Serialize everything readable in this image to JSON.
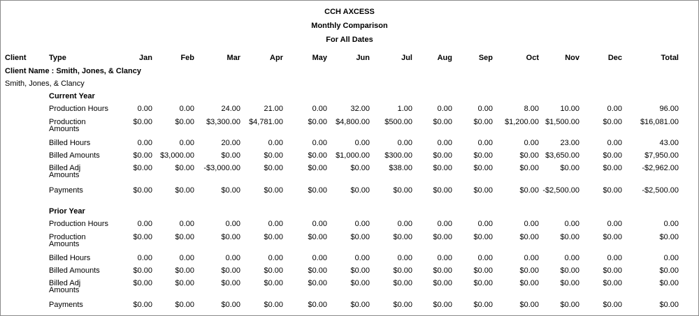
{
  "header": {
    "title": "CCH AXCESS",
    "subtitle": "Monthly Comparison",
    "range": "For All Dates"
  },
  "columns": [
    "Client",
    "Type",
    "Jan",
    "Feb",
    "Mar",
    "Apr",
    "May",
    "Jun",
    "Jul",
    "Aug",
    "Sep",
    "Oct",
    "Nov",
    "Dec",
    "Total"
  ],
  "group_label": "Client Name : Smith, Jones, & Clancy",
  "client": "Smith, Jones, & Clancy",
  "sections": [
    {
      "title": "Current Year",
      "rows": [
        {
          "label": "Production Hours",
          "values": [
            "0.00",
            "0.00",
            "24.00",
            "21.00",
            "0.00",
            "32.00",
            "1.00",
            "0.00",
            "0.00",
            "8.00",
            "10.00",
            "0.00",
            "96.00"
          ]
        },
        {
          "label": "Production Amounts",
          "values": [
            "$0.00",
            "$0.00",
            "$3,300.00",
            "$4,781.00",
            "$0.00",
            "$4,800.00",
            "$500.00",
            "$0.00",
            "$0.00",
            "$1,200.00",
            "$1,500.00",
            "$0.00",
            "$16,081.00"
          ]
        },
        {
          "label": "Billed Hours",
          "values": [
            "0.00",
            "0.00",
            "20.00",
            "0.00",
            "0.00",
            "0.00",
            "0.00",
            "0.00",
            "0.00",
            "0.00",
            "23.00",
            "0.00",
            "43.00"
          ]
        },
        {
          "label": "Billed Amounts",
          "values": [
            "$0.00",
            "$3,000.00",
            "$0.00",
            "$0.00",
            "$0.00",
            "$1,000.00",
            "$300.00",
            "$0.00",
            "$0.00",
            "$0.00",
            "$3,650.00",
            "$0.00",
            "$7,950.00"
          ]
        },
        {
          "label": "Billed Adj Amounts",
          "values": [
            "$0.00",
            "$0.00",
            "-$3,000.00",
            "$0.00",
            "$0.00",
            "$0.00",
            "$38.00",
            "$0.00",
            "$0.00",
            "$0.00",
            "$0.00",
            "$0.00",
            "-$2,962.00"
          ]
        },
        {
          "label": "Payments",
          "values": [
            "$0.00",
            "$0.00",
            "$0.00",
            "$0.00",
            "$0.00",
            "$0.00",
            "$0.00",
            "$0.00",
            "$0.00",
            "$0.00",
            "-$2,500.00",
            "$0.00",
            "-$2,500.00"
          ]
        }
      ]
    },
    {
      "title": "Prior Year",
      "rows": [
        {
          "label": "Production Hours",
          "values": [
            "0.00",
            "0.00",
            "0.00",
            "0.00",
            "0.00",
            "0.00",
            "0.00",
            "0.00",
            "0.00",
            "0.00",
            "0.00",
            "0.00",
            "0.00"
          ]
        },
        {
          "label": "Production Amounts",
          "values": [
            "$0.00",
            "$0.00",
            "$0.00",
            "$0.00",
            "$0.00",
            "$0.00",
            "$0.00",
            "$0.00",
            "$0.00",
            "$0.00",
            "$0.00",
            "$0.00",
            "$0.00"
          ]
        },
        {
          "label": "Billed Hours",
          "values": [
            "0.00",
            "0.00",
            "0.00",
            "0.00",
            "0.00",
            "0.00",
            "0.00",
            "0.00",
            "0.00",
            "0.00",
            "0.00",
            "0.00",
            "0.00"
          ]
        },
        {
          "label": "Billed Amounts",
          "values": [
            "$0.00",
            "$0.00",
            "$0.00",
            "$0.00",
            "$0.00",
            "$0.00",
            "$0.00",
            "$0.00",
            "$0.00",
            "$0.00",
            "$0.00",
            "$0.00",
            "$0.00"
          ]
        },
        {
          "label": "Billed Adj Amounts",
          "values": [
            "$0.00",
            "$0.00",
            "$0.00",
            "$0.00",
            "$0.00",
            "$0.00",
            "$0.00",
            "$0.00",
            "$0.00",
            "$0.00",
            "$0.00",
            "$0.00",
            "$0.00"
          ]
        },
        {
          "label": "Payments",
          "values": [
            "$0.00",
            "$0.00",
            "$0.00",
            "$0.00",
            "$0.00",
            "$0.00",
            "$0.00",
            "$0.00",
            "$0.00",
            "$0.00",
            "$0.00",
            "$0.00",
            "$0.00"
          ]
        }
      ]
    }
  ]
}
